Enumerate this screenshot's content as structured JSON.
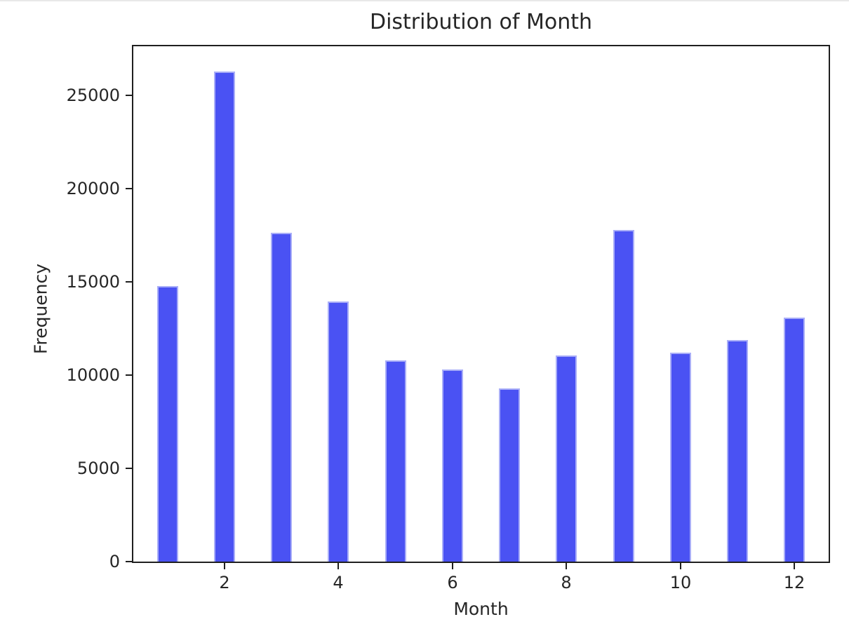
{
  "chart_data": {
    "type": "bar",
    "title": "Distribution of Month",
    "xlabel": "Month",
    "ylabel": "Frequency",
    "categories": [
      1,
      2,
      3,
      4,
      5,
      6,
      7,
      8,
      9,
      10,
      11,
      12
    ],
    "values": [
      14800,
      26300,
      17650,
      13950,
      10800,
      10300,
      9300,
      11050,
      17800,
      11200,
      11900,
      13100
    ],
    "x_ticks": [
      2,
      4,
      6,
      8,
      10,
      12
    ],
    "y_ticks": [
      0,
      5000,
      10000,
      15000,
      20000,
      25000
    ],
    "xlim": [
      0.4,
      12.6
    ],
    "ylim": [
      0,
      27650
    ],
    "grid": false,
    "legend_position": "none",
    "bar_color": "#4a52f3",
    "bar_edge_color": "#a9aef8",
    "axis_color": "#1f1f1f",
    "text_color": "#262626",
    "background_color": "#ffffff"
  }
}
